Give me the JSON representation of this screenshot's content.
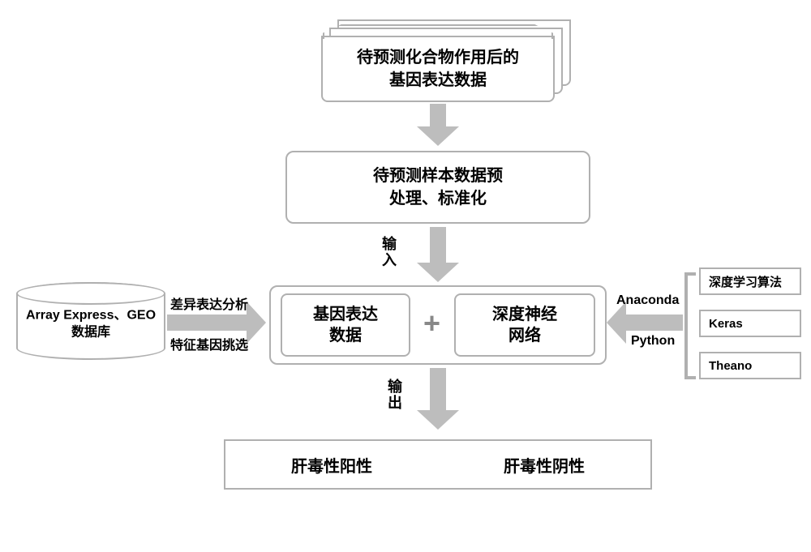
{
  "colors": {
    "line": "#b0b0b0",
    "arrow": "#bdbdbd",
    "text": "#222222",
    "bg": "#ffffff"
  },
  "docstack": {
    "text": "待预测化合物作用后的\n基因表达数据",
    "fontsize": 20
  },
  "preprocess": {
    "text": "待预测样本数据预\n处理、标准化",
    "fontsize": 20
  },
  "arrow_labels": {
    "input": "输入",
    "output": "输出",
    "left1": "差异表达分析",
    "left2": "特征基因挑选",
    "right1": "Anaconda",
    "right2": "Python",
    "fontsize": 16
  },
  "database": {
    "line1": "Array Express、GEO",
    "line2": "数据库",
    "fontsize": 16
  },
  "core": {
    "left": "基因表达\n数据",
    "plus": "+",
    "right": "深度神经\n网络",
    "fontsize": 20,
    "plus_fontsize": 36
  },
  "tools": {
    "items": [
      "深度学习算法",
      "Keras",
      "Theano"
    ],
    "fontsize": 15
  },
  "result": {
    "pos": "肝毒性阳性",
    "neg": "肝毒性阴性",
    "fontsize": 20
  },
  "layout": {
    "arrow_thick": 20,
    "arrow_head_w": 26,
    "arrow_head_l": 24
  }
}
